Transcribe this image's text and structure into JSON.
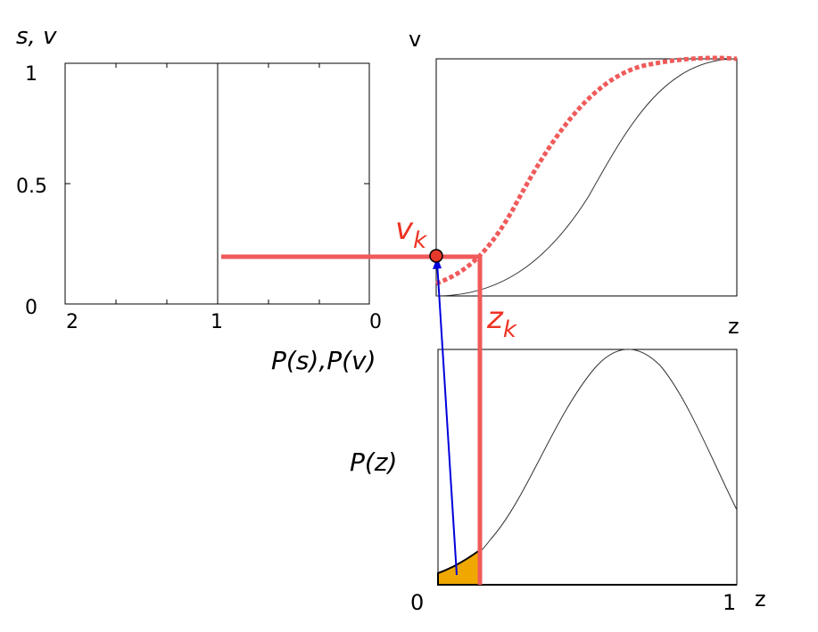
{
  "left_panel": {
    "axis_y_label": "s,  v",
    "y_ticks": [
      "1",
      "0.5",
      "0"
    ],
    "x_ticks": [
      "2",
      "1",
      "0"
    ],
    "x_axis_label": "P(s),P(v)"
  },
  "top_right_panel": {
    "axis_y_label": "v",
    "axis_x_label": "z"
  },
  "bottom_right_panel": {
    "axis_y_label": "P(z)",
    "x_tick_start": "0",
    "x_tick_end": "1",
    "axis_x_label": "z"
  },
  "annotations": {
    "vk_base": "v",
    "vk_sub": "k",
    "zk_base": "z",
    "zk_sub": "k"
  },
  "colors": {
    "highlight": "#f05a5a",
    "arrow": "#0000dd",
    "area_fill": "#f0a800",
    "frame": "#000000"
  }
}
